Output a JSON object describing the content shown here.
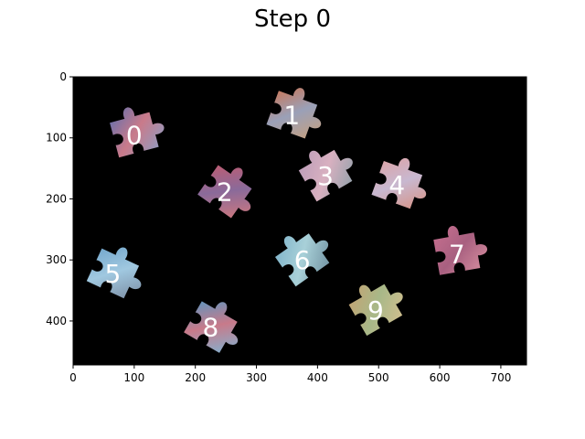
{
  "figure": {
    "title": "Step 0"
  },
  "image_panel": {
    "xlim": [
      0,
      742
    ],
    "ylim": [
      0,
      472
    ],
    "y_inverted": true,
    "background": "#000000",
    "xticks": [
      "0",
      "100",
      "200",
      "300",
      "400",
      "500",
      "600",
      "700"
    ],
    "xtick_values": [
      0,
      100,
      200,
      300,
      400,
      500,
      600,
      700
    ],
    "yticks": [
      "0",
      "100",
      "200",
      "300",
      "400"
    ],
    "ytick_values": [
      0,
      100,
      200,
      300,
      400
    ]
  },
  "pieces": [
    {
      "label": "0",
      "x": 100,
      "y": 95,
      "angle": -15,
      "colors": [
        "#5a6fb0",
        "#c97a8a",
        "#8aa0c8"
      ]
    },
    {
      "label": "1",
      "x": 358,
      "y": 62,
      "angle": 20,
      "colors": [
        "#d0704a",
        "#9aa0b8",
        "#c9a07a"
      ]
    },
    {
      "label": "2",
      "x": 248,
      "y": 188,
      "angle": 35,
      "colors": [
        "#c85a6a",
        "#8a6a9a",
        "#d87a7a"
      ]
    },
    {
      "label": "3",
      "x": 413,
      "y": 162,
      "angle": -30,
      "colors": [
        "#b89ab8",
        "#d8b0c0",
        "#8aa0a8"
      ]
    },
    {
      "label": "4",
      "x": 530,
      "y": 177,
      "angle": 20,
      "colors": [
        "#e0a0a0",
        "#c8b8d0",
        "#d89080"
      ]
    },
    {
      "label": "5",
      "x": 65,
      "y": 322,
      "angle": 25,
      "colors": [
        "#6aa0c8",
        "#a0c8e0",
        "#7a8aa0"
      ]
    },
    {
      "label": "6",
      "x": 375,
      "y": 300,
      "angle": -35,
      "colors": [
        "#7ab0c8",
        "#a8d0d8",
        "#6a8a9a"
      ]
    },
    {
      "label": "7",
      "x": 628,
      "y": 290,
      "angle": -10,
      "colors": [
        "#c87090",
        "#a86080",
        "#d890a0"
      ]
    },
    {
      "label": "8",
      "x": 225,
      "y": 410,
      "angle": 30,
      "colors": [
        "#4a9ac8",
        "#c87a8a",
        "#7ab8d8"
      ]
    },
    {
      "label": "9",
      "x": 495,
      "y": 382,
      "angle": -30,
      "colors": [
        "#c8a070",
        "#a8b888",
        "#d8c090"
      ]
    }
  ]
}
